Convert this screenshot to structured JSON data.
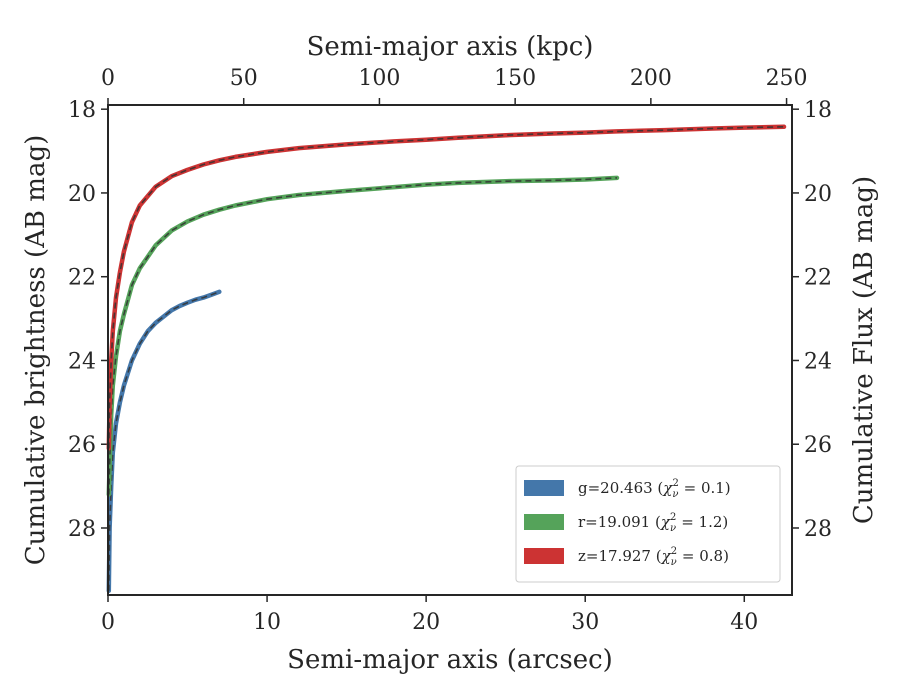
{
  "chart_data": {
    "type": "line",
    "title": "",
    "xlabel": "Semi-major axis (arcsec)",
    "x2label": "Semi-major axis (kpc)",
    "ylabel": "Cumulative brightness (AB mag)",
    "y2label": "Cumulative Flux (AB mag)",
    "xlim": [
      0,
      43
    ],
    "x2lim": [
      0,
      252
    ],
    "ylim": [
      29.6,
      17.9
    ],
    "y_inverted": true,
    "xticks": [
      0,
      10,
      20,
      30,
      40
    ],
    "x2ticks": [
      0,
      50,
      100,
      150,
      200,
      250
    ],
    "yticks": [
      18,
      20,
      22,
      24,
      26,
      28
    ],
    "grid": false,
    "legend_position": "lower-right",
    "series": [
      {
        "name": "g=20.463",
        "chi2": "0.1",
        "color": "#4477aa",
        "x": [
          0.05,
          0.1,
          0.2,
          0.3,
          0.5,
          0.75,
          1.0,
          1.5,
          2.0,
          2.5,
          3.0,
          3.5,
          4.0,
          4.5,
          5.0,
          5.5,
          6.0,
          6.5,
          7.0
        ],
        "y": [
          29.5,
          28.0,
          27.0,
          26.2,
          25.5,
          25.0,
          24.6,
          24.0,
          23.6,
          23.3,
          23.1,
          22.95,
          22.8,
          22.7,
          22.62,
          22.55,
          22.5,
          22.43,
          22.36
        ]
      },
      {
        "name": "r=19.091",
        "chi2": "1.2",
        "color": "#55a35a",
        "x": [
          0.05,
          0.1,
          0.2,
          0.3,
          0.5,
          0.75,
          1.0,
          1.5,
          2.0,
          3.0,
          4.0,
          5.0,
          6.0,
          7.0,
          8.0,
          10.0,
          12.0,
          15.0,
          18.0,
          20.0,
          22.0,
          25.0,
          28.0,
          30.0,
          32.0
        ],
        "y": [
          27.2,
          26.5,
          25.3,
          24.6,
          23.9,
          23.3,
          22.9,
          22.2,
          21.8,
          21.25,
          20.9,
          20.68,
          20.52,
          20.4,
          20.3,
          20.15,
          20.05,
          19.95,
          19.86,
          19.8,
          19.76,
          19.72,
          19.7,
          19.68,
          19.64
        ]
      },
      {
        "name": "z=17.927",
        "chi2": "0.8",
        "color": "#cc3333",
        "x": [
          0.05,
          0.1,
          0.2,
          0.3,
          0.5,
          0.75,
          1.0,
          1.5,
          2.0,
          3.0,
          4.0,
          5.0,
          6.0,
          7.0,
          8.0,
          10.0,
          12.0,
          15.0,
          18.0,
          20.0,
          22.0,
          25.0,
          28.0,
          30.0,
          32.0,
          35.0,
          38.0,
          40.0,
          42.5
        ],
        "y": [
          26.1,
          25.0,
          24.0,
          23.3,
          22.5,
          21.9,
          21.4,
          20.7,
          20.3,
          19.85,
          19.6,
          19.45,
          19.32,
          19.22,
          19.14,
          19.02,
          18.93,
          18.84,
          18.77,
          18.73,
          18.68,
          18.62,
          18.58,
          18.56,
          18.53,
          18.5,
          18.46,
          18.44,
          18.42
        ]
      }
    ]
  }
}
